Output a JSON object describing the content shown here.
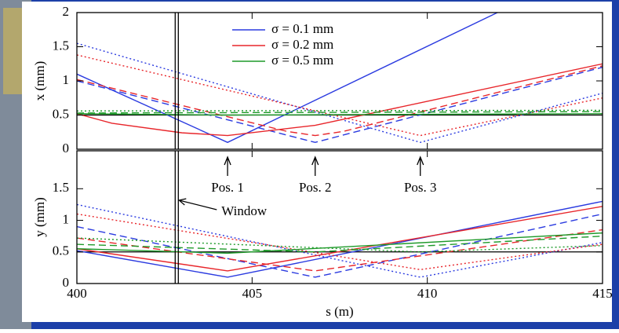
{
  "chart_data": [
    {
      "type": "line",
      "ylabel": "x (mm)",
      "xlim": [
        400,
        415
      ],
      "xticks": [
        400,
        405,
        410,
        415
      ],
      "ylim": [
        0,
        2
      ],
      "yticks": [
        0,
        0.5,
        1,
        1.5,
        2
      ],
      "hline": 0.5,
      "vline": 402.85,
      "legend": "top",
      "series": [
        {
          "name": "σ = 0.1 mm",
          "color": "#2b3be0",
          "lines": [
            {
              "style": "solid",
              "x": [
                400,
                404.3,
                412
              ],
              "values": [
                1.1,
                0.1,
                2.0
              ]
            },
            {
              "style": "dashed",
              "x": [
                400,
                406.8,
                415
              ],
              "values": [
                1.0,
                0.1,
                1.2
              ]
            },
            {
              "style": "dotted",
              "x": [
                400,
                409.8,
                415
              ],
              "values": [
                1.55,
                0.1,
                0.82
              ]
            }
          ]
        },
        {
          "name": "σ = 0.2 mm",
          "color": "#e8262b",
          "lines": [
            {
              "style": "solid",
              "x": [
                400,
                401,
                403,
                404.3,
                406.8,
                415
              ],
              "values": [
                0.52,
                0.38,
                0.24,
                0.2,
                0.35,
                1.25
              ]
            },
            {
              "style": "dashed",
              "x": [
                400,
                406,
                406.8,
                407.6,
                415
              ],
              "values": [
                1.02,
                0.26,
                0.2,
                0.26,
                1.22
              ]
            },
            {
              "style": "dotted",
              "x": [
                400,
                409.8,
                415
              ],
              "values": [
                1.38,
                0.2,
                0.75
              ]
            }
          ]
        },
        {
          "name": "σ = 0.5 mm",
          "color": "#1f9a2a",
          "lines": [
            {
              "style": "solid",
              "x": [
                400,
                404.3,
                415
              ],
              "values": [
                0.52,
                0.5,
                0.52
              ]
            },
            {
              "style": "dashed",
              "x": [
                400,
                415
              ],
              "values": [
                0.53,
                0.55
              ]
            },
            {
              "style": "dotted",
              "x": [
                400,
                415
              ],
              "values": [
                0.56,
                0.57
              ]
            }
          ]
        }
      ]
    },
    {
      "type": "line",
      "ylabel": "y (mm)",
      "xlabel": "s (m)",
      "xlim": [
        400,
        415
      ],
      "xticks": [
        400,
        405,
        410,
        415
      ],
      "ylim": [
        0,
        2.1
      ],
      "yticks": [
        0,
        0.5,
        1,
        1.5
      ],
      "hline": 0.5,
      "vline": 402.85,
      "window": {
        "label": "Window",
        "s": 402.85
      },
      "annotations": [
        {
          "text": "Pos. 1",
          "x": 404.3
        },
        {
          "text": "Pos. 2",
          "x": 406.8
        },
        {
          "text": "Pos. 3",
          "x": 409.8
        }
      ],
      "series": [
        {
          "color": "#2b3be0",
          "lines": [
            {
              "style": "solid",
              "x": [
                400,
                404.3,
                415
              ],
              "values": [
                0.52,
                0.1,
                1.3
              ]
            },
            {
              "style": "dashed",
              "x": [
                400,
                406.8,
                415
              ],
              "values": [
                0.9,
                0.1,
                1.1
              ]
            },
            {
              "style": "dotted",
              "x": [
                400,
                409.8,
                415
              ],
              "values": [
                1.25,
                0.1,
                0.65
              ]
            }
          ]
        },
        {
          "color": "#e8262b",
          "lines": [
            {
              "style": "solid",
              "x": [
                400,
                404.3,
                415
              ],
              "values": [
                0.55,
                0.2,
                1.22
              ]
            },
            {
              "style": "dashed",
              "x": [
                400,
                406.8,
                415
              ],
              "values": [
                0.72,
                0.2,
                0.85
              ]
            },
            {
              "style": "dotted",
              "x": [
                400,
                409.8,
                415
              ],
              "values": [
                1.1,
                0.22,
                0.62
              ]
            }
          ]
        },
        {
          "color": "#1f9a2a",
          "lines": [
            {
              "style": "solid",
              "x": [
                400,
                404.3,
                415
              ],
              "values": [
                0.55,
                0.48,
                0.8
              ]
            },
            {
              "style": "dashed",
              "x": [
                400,
                406.8,
                415
              ],
              "values": [
                0.62,
                0.5,
                0.75
              ]
            },
            {
              "style": "dotted",
              "x": [
                400,
                409.8,
                415
              ],
              "values": [
                0.72,
                0.5,
                0.6
              ]
            }
          ]
        }
      ]
    }
  ]
}
